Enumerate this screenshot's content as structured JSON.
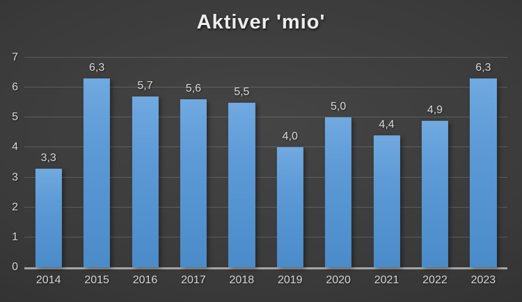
{
  "chart_data": {
    "type": "bar",
    "title": "Aktiver 'mio'",
    "categories": [
      "2014",
      "2015",
      "2016",
      "2017",
      "2018",
      "2019",
      "2020",
      "2021",
      "2022",
      "2023"
    ],
    "values": [
      3.3,
      6.3,
      5.7,
      5.6,
      5.5,
      4.0,
      5.0,
      4.4,
      4.9,
      6.3
    ],
    "data_labels": [
      "3,3",
      "6,3",
      "5,7",
      "5,6",
      "5,5",
      "4,0",
      "5,0",
      "4,4",
      "4,9",
      "6,3"
    ],
    "xlabel": "",
    "ylabel": "",
    "ylim": [
      0,
      7
    ],
    "yticks": [
      0,
      1,
      2,
      3,
      4,
      5,
      6,
      7
    ],
    "grid": true,
    "legend_position": "none",
    "colors": {
      "bar_top": "#71a9e0",
      "bar_bottom": "#4a8bc9",
      "background_center": "#454545",
      "background_edge": "#232323",
      "gridline": "#555555",
      "axis_line": "#a6a6a6",
      "text": "#d6d6d6",
      "title_text": "#ececec"
    }
  }
}
